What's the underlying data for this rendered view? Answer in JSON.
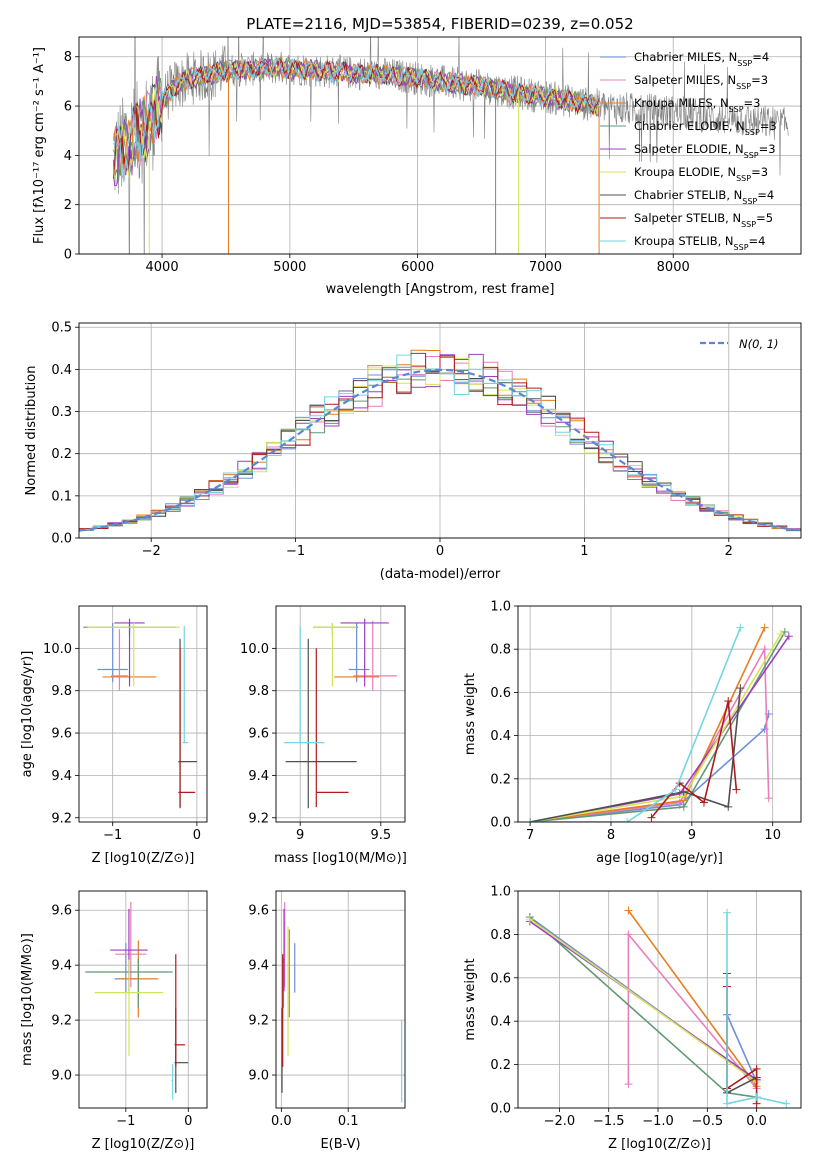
{
  "title": "PLATE=2116, MJD=53854, FIBERID=0239, z=0.052",
  "colors": {
    "Chabrier MILES": "#6f8fd8",
    "Salpeter MILES": "#e77fbe",
    "Kroupa MILES": "#e87d1e",
    "Chabrier ELODIE": "#5f9a74",
    "Salpeter ELODIE": "#9f3cc0",
    "Kroupa ELODIE": "#d4e35c",
    "Chabrier STELIB": "#505050",
    "Salpeter STELIB": "#b01b1b",
    "Kroupa STELIB": "#74d6e0",
    "data": "#808080"
  },
  "chart_data": [
    {
      "type": "line",
      "id": "spectrum",
      "title": "PLATE=2116, MJD=53854, FIBERID=0239, z=0.052",
      "xlabel": "wavelength [Angstrom, rest frame]",
      "ylabel": "Flux [fλ10⁻¹⁷ erg cm⁻² s⁻¹ A⁻¹]",
      "xlim": [
        3350,
        9000
      ],
      "ylim": [
        0,
        8.8
      ],
      "xticks": [
        4000,
        5000,
        6000,
        7000,
        8000
      ],
      "yticks": [
        0,
        2,
        4,
        6,
        8
      ],
      "continuum": {
        "x": [
          3600,
          3700,
          3800,
          3900,
          4000,
          4100,
          4200,
          4300,
          4400,
          4500,
          4700,
          4900,
          5100,
          5300,
          5500,
          5700,
          5900,
          6100,
          6300,
          6500,
          6700,
          6900,
          7100,
          7300,
          7500,
          7700,
          7900,
          8100,
          8300,
          8500,
          8700,
          8900
        ],
        "y": [
          3.9,
          4.3,
          4.8,
          5.3,
          6.2,
          6.8,
          7.1,
          7.2,
          7.3,
          7.45,
          7.5,
          7.55,
          7.5,
          7.4,
          7.35,
          7.3,
          7.2,
          7.05,
          6.9,
          6.8,
          6.6,
          6.45,
          6.3,
          6.1,
          5.95,
          5.85,
          5.8,
          5.7,
          5.55,
          5.45,
          5.35,
          5.25
        ]
      },
      "legend": [
        {
          "name": "Chabrier MILES",
          "nssp": "N_SSP=4"
        },
        {
          "name": "Salpeter MILES",
          "nssp": "N_SSP=3"
        },
        {
          "name": "Kroupa MILES",
          "nssp": "N_SSP=3"
        },
        {
          "name": "Chabrier ELODIE",
          "nssp": "N_SSP=3"
        },
        {
          "name": "Salpeter ELODIE",
          "nssp": "N_SSP=3"
        },
        {
          "name": "Kroupa ELODIE",
          "nssp": "N_SSP=3"
        },
        {
          "name": "Chabrier STELIB",
          "nssp": "N_SSP=4"
        },
        {
          "name": "Salpeter STELIB",
          "nssp": "N_SSP=5"
        },
        {
          "name": "Kroupa STELIB",
          "nssp": "N_SSP=4"
        }
      ]
    },
    {
      "type": "histogram",
      "id": "residuals",
      "xlabel": "(data-model)/error",
      "ylabel": "Normed distribution",
      "xlim": [
        -2.5,
        2.5
      ],
      "ylim": [
        0,
        0.51
      ],
      "xticks": [
        -2,
        -1,
        0,
        1,
        2
      ],
      "yticks": [
        0.0,
        0.1,
        0.2,
        0.3,
        0.4,
        0.5
      ],
      "bin_width": 0.1,
      "gaussian_label": "N(0, 1)"
    },
    {
      "type": "scatter",
      "id": "age_vs_Z",
      "xlabel": "Z [log10(Z/Z⊙)]",
      "ylabel": "age  [log10(age/yr)]",
      "xlim": [
        -1.4,
        0.12
      ],
      "ylim": [
        9.18,
        10.2
      ],
      "xticks": [
        -1,
        0
      ],
      "yticks": [
        9.2,
        9.4,
        9.6,
        9.8,
        10.0
      ],
      "points": [
        {
          "s": "Chabrier MILES",
          "x": -1.0,
          "xe": [
            0.18,
            0.18
          ],
          "y": 9.9,
          "ye": [
            0.06,
            0.22
          ]
        },
        {
          "s": "Salpeter MILES",
          "x": -0.92,
          "xe": [
            0.1,
            0.1
          ],
          "y": 9.87,
          "ye": [
            0.07,
            0.22
          ]
        },
        {
          "s": "Kroupa MILES",
          "x": -0.8,
          "xe": [
            0.32,
            0.32
          ],
          "y": 9.865,
          "ye": [
            0.01,
            0.01
          ]
        },
        {
          "s": "Chabrier ELODIE",
          "x": -0.8,
          "xe": [
            0.55,
            0.55
          ],
          "y": 10.1,
          "ye": [
            0.04,
            0.02
          ]
        },
        {
          "s": "Salpeter ELODIE",
          "x": -0.8,
          "xe": [
            0.18,
            0.18
          ],
          "y": 10.12,
          "ye": [
            0.3,
            0.02
          ]
        },
        {
          "s": "Kroupa ELODIE",
          "x": -0.75,
          "xe": [
            0.55,
            0.55
          ],
          "y": 10.1,
          "ye": [
            0.28,
            0.02
          ]
        },
        {
          "s": "Chabrier STELIB",
          "x": -0.2,
          "xe": [
            0.02,
            0.2
          ],
          "y": 9.465,
          "ye": [
            0.22,
            0.58
          ]
        },
        {
          "s": "Salpeter STELIB",
          "x": -0.2,
          "xe": [
            0.02,
            0.18
          ],
          "y": 9.32,
          "ye": [
            0.07,
            0.68
          ]
        },
        {
          "s": "Kroupa STELIB",
          "x": -0.15,
          "xe": [
            0.02,
            0.05
          ],
          "y": 9.555,
          "ye": [
            0.0,
            0.55
          ]
        }
      ]
    },
    {
      "type": "scatter",
      "id": "age_vs_mass",
      "xlabel": "mass [log10(M/M⊙)]",
      "ylabel": "",
      "xlim": [
        8.85,
        9.65
      ],
      "ylim": [
        9.18,
        10.2
      ],
      "xticks": [
        9.0,
        9.5
      ],
      "yticks": [
        9.2,
        9.4,
        9.6,
        9.8,
        10.0
      ],
      "points": [
        {
          "s": "Chabrier MILES",
          "x": 9.35,
          "xe": [
            0.05,
            0.08
          ],
          "y": 9.9,
          "ye": [
            0.06,
            0.22
          ]
        },
        {
          "s": "Salpeter MILES",
          "x": 9.45,
          "xe": [
            0.12,
            0.15
          ],
          "y": 9.87,
          "ye": [
            0.07,
            0.26
          ]
        },
        {
          "s": "Kroupa MILES",
          "x": 9.35,
          "xe": [
            0.14,
            0.14
          ],
          "y": 9.865,
          "ye": [
            0.01,
            0.01
          ]
        },
        {
          "s": "Chabrier ELODIE",
          "x": 9.2,
          "xe": [
            0.12,
            0.16
          ],
          "y": 10.1,
          "ye": [
            0.04,
            0.02
          ]
        },
        {
          "s": "Salpeter ELODIE",
          "x": 9.4,
          "xe": [
            0.15,
            0.15
          ],
          "y": 10.12,
          "ye": [
            0.3,
            0.02
          ]
        },
        {
          "s": "Kroupa ELODIE",
          "x": 9.2,
          "xe": [
            0.12,
            0.15
          ],
          "y": 10.1,
          "ye": [
            0.28,
            0.02
          ]
        },
        {
          "s": "Chabrier STELIB",
          "x": 9.05,
          "xe": [
            0.14,
            0.3
          ],
          "y": 9.465,
          "ye": [
            0.22,
            0.58
          ]
        },
        {
          "s": "Salpeter STELIB",
          "x": 9.1,
          "xe": [
            0.0,
            0.2
          ],
          "y": 9.32,
          "ye": [
            0.07,
            0.68
          ]
        },
        {
          "s": "Kroupa STELIB",
          "x": 9.0,
          "xe": [
            0.1,
            0.15
          ],
          "y": 9.555,
          "ye": [
            0.0,
            0.55
          ]
        }
      ]
    },
    {
      "type": "line",
      "id": "mass_weight_vs_age",
      "xlabel": "age  [log10(age/yr)]",
      "ylabel": "mass weight",
      "xlim": [
        6.85,
        10.35
      ],
      "ylim": [
        0,
        1.0
      ],
      "xticks": [
        7,
        8,
        9,
        10
      ],
      "yticks": [
        0.0,
        0.2,
        0.4,
        0.6,
        0.8,
        1.0
      ],
      "series": [
        {
          "s": "Chabrier MILES",
          "x": [
            7.0,
            8.85,
            9.9,
            9.95
          ],
          "y": [
            0.0,
            0.08,
            0.43,
            0.5
          ]
        },
        {
          "s": "Salpeter MILES",
          "x": [
            7.0,
            8.85,
            9.9,
            9.95
          ],
          "y": [
            0.0,
            0.09,
            0.8,
            0.11
          ]
        },
        {
          "s": "Kroupa MILES",
          "x": [
            7.0,
            8.9,
            9.9
          ],
          "y": [
            0.0,
            0.1,
            0.9
          ]
        },
        {
          "s": "Chabrier ELODIE",
          "x": [
            7.0,
            8.9,
            10.15
          ],
          "y": [
            0.0,
            0.07,
            0.88
          ]
        },
        {
          "s": "Salpeter ELODIE",
          "x": [
            7.0,
            8.85,
            10.2
          ],
          "y": [
            0.0,
            0.13,
            0.86
          ]
        },
        {
          "s": "Kroupa ELODIE",
          "x": [
            7.0,
            8.9,
            10.1
          ],
          "y": [
            0.0,
            0.12,
            0.87
          ]
        },
        {
          "s": "Chabrier STELIB",
          "x": [
            7.0,
            8.9,
            9.45,
            9.6
          ],
          "y": [
            0.0,
            0.14,
            0.07,
            0.62
          ]
        },
        {
          "s": "Salpeter STELIB",
          "x": [
            8.5,
            8.85,
            9.15,
            9.45,
            9.55
          ],
          "y": [
            0.02,
            0.18,
            0.09,
            0.56,
            0.15
          ]
        },
        {
          "s": "Kroupa STELIB",
          "x": [
            7.0,
            8.2,
            8.8,
            9.6
          ],
          "y": [
            0.0,
            0.0,
            0.15,
            0.9
          ]
        }
      ]
    },
    {
      "type": "scatter",
      "id": "mass_vs_Z",
      "xlabel": "Z [log10(Z/Z⊙)]",
      "ylabel": "mass [log10(M/M⊙)]",
      "xlim": [
        -1.75,
        0.3
      ],
      "ylim": [
        8.88,
        9.67
      ],
      "xticks": [
        -1,
        0
      ],
      "yticks": [
        9.0,
        9.2,
        9.4,
        9.6
      ],
      "points": [
        {
          "s": "Chabrier MILES",
          "x": -1.0,
          "xe": [
            0.18,
            0.18
          ],
          "y": 9.35,
          "ye": [
            0.05,
            0.13
          ]
        },
        {
          "s": "Salpeter MILES",
          "x": -0.92,
          "xe": [
            0.25,
            0.25
          ],
          "y": 9.44,
          "ye": [
            0.12,
            0.19
          ]
        },
        {
          "s": "Kroupa MILES",
          "x": -0.8,
          "xe": [
            0.32,
            0.32
          ],
          "y": 9.35,
          "ye": [
            0.14,
            0.14
          ]
        },
        {
          "s": "Chabrier ELODIE",
          "x": -0.8,
          "xe": [
            0.85,
            0.55
          ],
          "y": 9.375,
          "ye": [
            0.13,
            0.05
          ]
        },
        {
          "s": "Salpeter ELODIE",
          "x": -0.95,
          "xe": [
            0.3,
            0.3
          ],
          "y": 9.455,
          "ye": [
            0.15,
            0.15
          ]
        },
        {
          "s": "Kroupa ELODIE",
          "x": -0.95,
          "xe": [
            0.55,
            0.55
          ],
          "y": 9.3,
          "ye": [
            0.23,
            0.12
          ]
        },
        {
          "s": "Chabrier STELIB",
          "x": -0.2,
          "xe": [
            0.02,
            0.2
          ],
          "y": 9.045,
          "ye": [
            0.11,
            0.2
          ]
        },
        {
          "s": "Salpeter STELIB",
          "x": -0.2,
          "xe": [
            0.02,
            0.15
          ],
          "y": 9.11,
          "ye": [
            0.08,
            0.33
          ]
        },
        {
          "s": "Kroupa STELIB",
          "x": -0.25,
          "xe": [
            0.02,
            0.0
          ],
          "y": 8.98,
          "ye": [
            0.07,
            0.06
          ]
        }
      ]
    },
    {
      "type": "scatter",
      "id": "mass_vs_ebv",
      "xlabel": "E(B-V)",
      "ylabel": "",
      "xlim": [
        -0.008,
        0.185
      ],
      "ylim": [
        8.88,
        9.67
      ],
      "xticks": [
        0.0,
        0.1
      ],
      "yticks": [
        9.0,
        9.2,
        9.4,
        9.6
      ],
      "points": [
        {
          "s": "Chabrier MILES",
          "x": 0.02,
          "y": 9.35,
          "ye": [
            0.05,
            0.13
          ]
        },
        {
          "s": "Salpeter MILES",
          "x": 0.005,
          "y": 9.44,
          "ye": [
            0.12,
            0.19
          ]
        },
        {
          "s": "Kroupa MILES",
          "x": 0.012,
          "y": 9.35,
          "ye": [
            0.14,
            0.18
          ]
        },
        {
          "s": "Chabrier ELODIE",
          "x": 0.003,
          "y": 9.375,
          "ye": [
            0.13,
            0.05
          ]
        },
        {
          "s": "Salpeter ELODIE",
          "x": 0.004,
          "y": 9.455,
          "ye": [
            0.15,
            0.15
          ]
        },
        {
          "s": "Kroupa ELODIE",
          "x": 0.01,
          "y": 9.3,
          "ye": [
            0.23,
            0.24
          ]
        },
        {
          "s": "Chabrier STELIB",
          "x": 0.001,
          "y": 9.045,
          "ye": [
            0.11,
            0.2
          ]
        },
        {
          "s": "Salpeter STELIB",
          "x": 0.002,
          "y": 9.11,
          "ye": [
            0.08,
            0.33
          ]
        },
        {
          "s": "Kroupa STELIB",
          "x": 0.18,
          "y": 9.05,
          "ye": [
            0.15,
            0.15
          ]
        }
      ]
    },
    {
      "type": "line",
      "id": "mass_weight_vs_Z",
      "xlabel": "Z [log10(Z/Z⊙)]",
      "ylabel": "mass weight",
      "xlim": [
        -2.42,
        0.45
      ],
      "ylim": [
        0,
        1.0
      ],
      "xticks": [
        -2.0,
        -1.5,
        -1.0,
        -0.5,
        0.0
      ],
      "yticks": [
        0.0,
        0.2,
        0.4,
        0.6,
        0.8,
        1.0
      ],
      "series": [
        {
          "s": "Chabrier MILES",
          "x": [
            -2.3,
            0.0,
            -0.3,
            -0.3
          ],
          "y": [
            0.88,
            0.12,
            0.43,
            0.43
          ]
        },
        {
          "s": "Salpeter MILES",
          "x": [
            -1.3,
            -1.3,
            0.0
          ],
          "y": [
            0.11,
            0.8,
            0.09
          ]
        },
        {
          "s": "Kroupa MILES",
          "x": [
            -1.3,
            0.0
          ],
          "y": [
            0.91,
            0.1
          ]
        },
        {
          "s": "Chabrier ELODIE",
          "x": [
            -2.3,
            -0.3,
            0.0
          ],
          "y": [
            0.88,
            0.07,
            0.05
          ]
        },
        {
          "s": "Salpeter ELODIE",
          "x": [
            -2.3,
            0.0,
            0.0
          ],
          "y": [
            0.86,
            0.13,
            0.13
          ]
        },
        {
          "s": "Kroupa ELODIE",
          "x": [
            -2.3,
            0.0
          ],
          "y": [
            0.87,
            0.12
          ]
        },
        {
          "s": "Chabrier STELIB",
          "x": [
            -0.3,
            -0.3,
            0.0,
            0.0
          ],
          "y": [
            0.62,
            0.07,
            0.14,
            0.14
          ]
        },
        {
          "s": "Salpeter STELIB",
          "x": [
            -0.3,
            -0.3,
            0.0,
            0.0
          ],
          "y": [
            0.56,
            0.09,
            0.18,
            0.02
          ]
        },
        {
          "s": "Kroupa STELIB",
          "x": [
            -0.3,
            -0.3,
            0.0,
            0.3
          ],
          "y": [
            0.9,
            0.02,
            0.05,
            0.02
          ]
        }
      ]
    }
  ]
}
